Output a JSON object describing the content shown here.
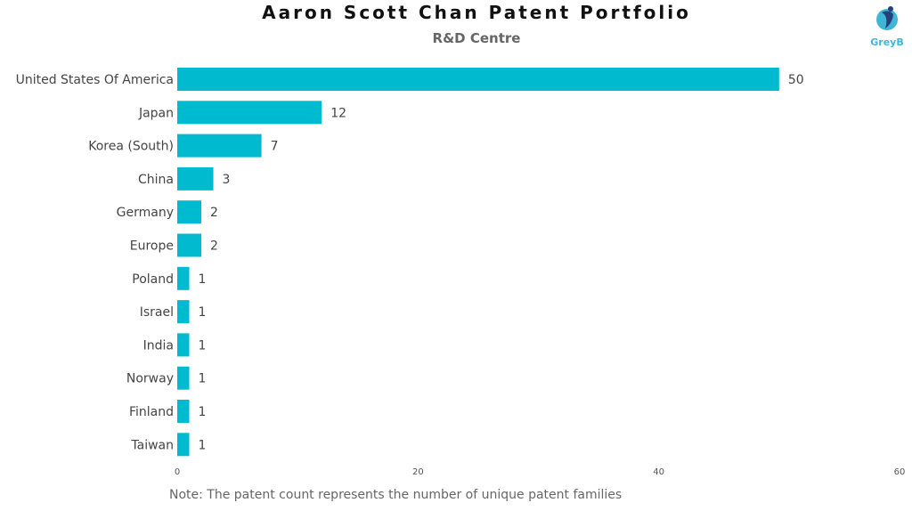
{
  "header": {
    "title": "Aaron Scott Chan Patent Portfolio",
    "subtitle": "R&D Centre"
  },
  "brand": {
    "logo_text": "GreyB",
    "logo_icon": "greyb-logo-icon",
    "accent_color": "#00B5CC"
  },
  "chart_data": {
    "type": "bar",
    "orientation": "horizontal",
    "title": "Aaron Scott Chan Patent Portfolio",
    "subtitle": "R&D Centre",
    "categories": [
      "United States Of America",
      "Japan",
      "Korea (South)",
      "China",
      "Germany",
      "Europe",
      "Poland",
      "Israel",
      "India",
      "Norway",
      "Finland",
      "Taiwan"
    ],
    "values": [
      50,
      12,
      7,
      3,
      2,
      2,
      1,
      1,
      1,
      1,
      1,
      1
    ],
    "xlim": [
      0,
      60
    ],
    "xticks": [
      0,
      20,
      40,
      60
    ],
    "grid": false,
    "bar_color": "#00BBCF"
  },
  "footer": {
    "note": "Note: The patent count represents the number of unique patent families"
  }
}
